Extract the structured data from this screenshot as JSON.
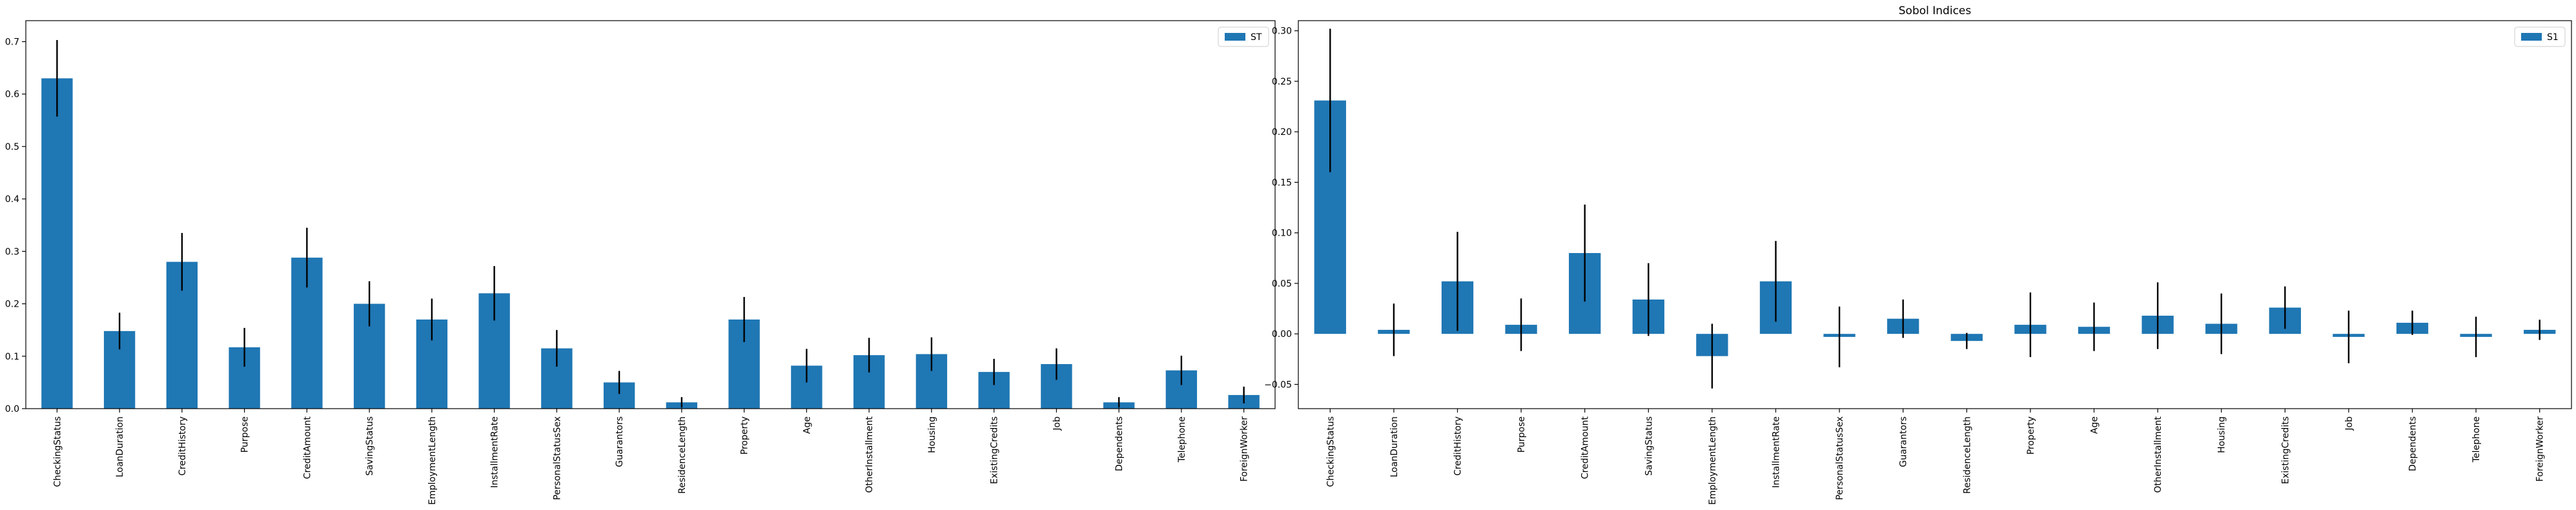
{
  "colors": {
    "bar": "#1f77b4",
    "error": "#000000",
    "axis": "#000000"
  },
  "chart_data": [
    {
      "type": "bar",
      "title": "",
      "xlabel": "",
      "ylabel": "",
      "ylim": [
        0,
        0.74
      ],
      "yticks": [
        0.0,
        0.1,
        0.2,
        0.3,
        0.4,
        0.5,
        0.6,
        0.7
      ],
      "ytick_labels": [
        "0.0",
        "0.1",
        "0.2",
        "0.3",
        "0.4",
        "0.5",
        "0.6",
        "0.7"
      ],
      "legend": {
        "label": "ST",
        "position": "top-right"
      },
      "grid": false,
      "categories": [
        "CheckingStatus",
        "LoanDuration",
        "CreditHistory",
        "Purpose",
        "CreditAmount",
        "SavingStatus",
        "EmploymentLength",
        "InstallmentRate",
        "PersonalStatusSex",
        "Guarantors",
        "ResidenceLength",
        "Property",
        "Age",
        "OtherInstallment",
        "Housing",
        "ExistingCredits",
        "Job",
        "Dependents",
        "Telephone",
        "ForeignWorker"
      ],
      "values": [
        0.63,
        0.148,
        0.28,
        0.117,
        0.288,
        0.2,
        0.17,
        0.22,
        0.115,
        0.05,
        0.012,
        0.17,
        0.082,
        0.102,
        0.104,
        0.07,
        0.085,
        0.012,
        0.073,
        0.026
      ],
      "errors": [
        0.073,
        0.035,
        0.055,
        0.037,
        0.057,
        0.043,
        0.04,
        0.052,
        0.035,
        0.022,
        0.01,
        0.043,
        0.032,
        0.033,
        0.032,
        0.025,
        0.03,
        0.01,
        0.028,
        0.016
      ]
    },
    {
      "type": "bar",
      "title": "Sobol Indices",
      "xlabel": "",
      "ylabel": "",
      "ylim": [
        -0.074,
        0.31
      ],
      "yticks": [
        -0.05,
        0.0,
        0.05,
        0.1,
        0.15,
        0.2,
        0.25,
        0.3
      ],
      "ytick_labels": [
        "−0.05",
        "0.00",
        "0.05",
        "0.10",
        "0.15",
        "0.20",
        "0.25",
        "0.30"
      ],
      "legend": {
        "label": "S1",
        "position": "top-right"
      },
      "grid": false,
      "categories": [
        "CheckingStatus",
        "LoanDuration",
        "CreditHistory",
        "Purpose",
        "CreditAmount",
        "SavingStatus",
        "EmploymentLength",
        "InstallmentRate",
        "PersonalStatusSex",
        "Guarantors",
        "ResidenceLength",
        "Property",
        "Age",
        "OtherInstallment",
        "Housing",
        "ExistingCredits",
        "Job",
        "Dependents",
        "Telephone",
        "ForeignWorker"
      ],
      "values": [
        0.231,
        0.004,
        0.052,
        0.009,
        0.08,
        0.034,
        -0.022,
        0.052,
        -0.003,
        0.015,
        -0.007,
        0.009,
        0.007,
        0.018,
        0.01,
        0.026,
        -0.003,
        0.011,
        -0.003,
        0.004
      ],
      "errors": [
        0.071,
        0.026,
        0.049,
        0.026,
        0.048,
        0.036,
        0.032,
        0.04,
        0.03,
        0.019,
        0.008,
        0.032,
        0.024,
        0.033,
        0.03,
        0.021,
        0.026,
        0.012,
        0.02,
        0.01
      ]
    }
  ]
}
